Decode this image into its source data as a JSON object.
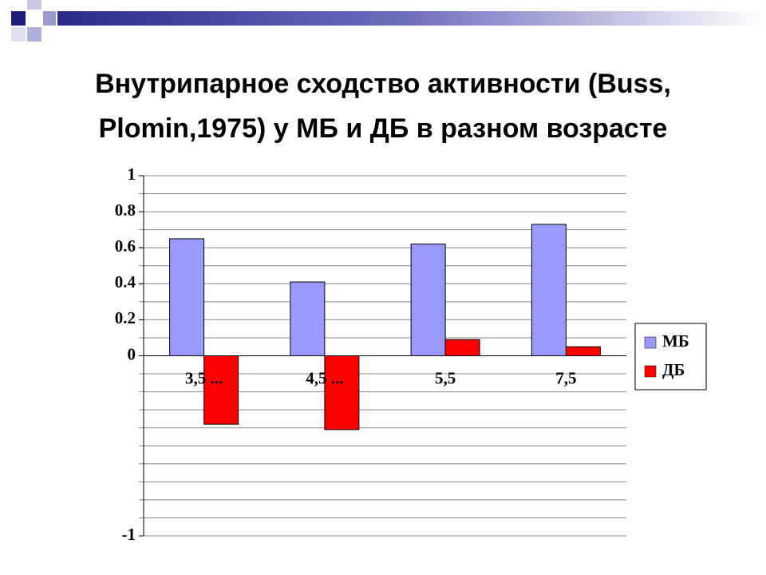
{
  "chart_data": {
    "type": "bar",
    "title": [
      "Внутрипарное сходство активности (Buss,",
      "Plomin,1975) у МБ и ДБ в разном возрасте"
    ],
    "categories": [
      "3,5 ...",
      "4,5 ...",
      "5,5",
      "7,5"
    ],
    "series": [
      {
        "name": "МБ",
        "color": "#9999ff",
        "values": [
          0.65,
          0.41,
          0.62,
          0.73
        ]
      },
      {
        "name": "ДБ",
        "color": "#ff0000",
        "values": [
          -0.38,
          -0.41,
          0.09,
          0.05
        ]
      }
    ],
    "ylim": [
      -1,
      1
    ],
    "yticks": [
      -1,
      0,
      0.2,
      0.4,
      0.6,
      0.8,
      1
    ],
    "grid": true,
    "grid_step": 0.1,
    "legend": "right"
  }
}
